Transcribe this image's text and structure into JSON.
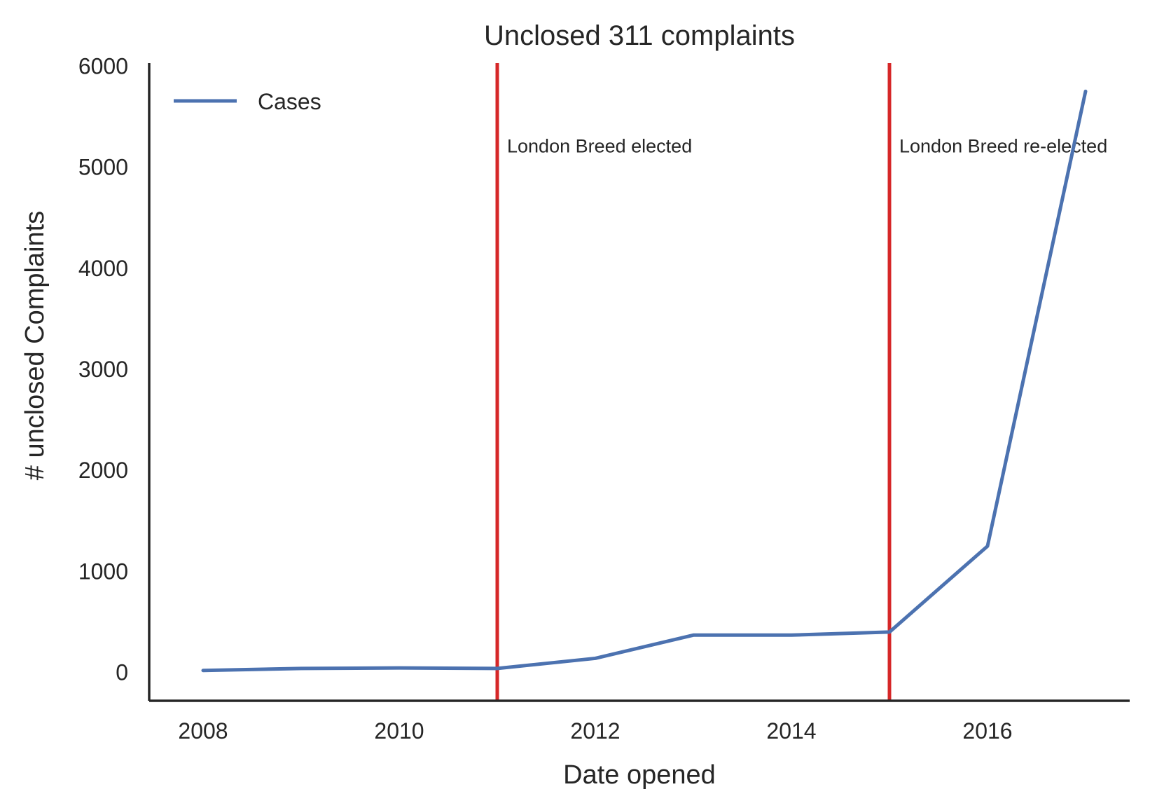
{
  "chart_data": {
    "type": "line",
    "title": "Unclosed 311 complaints",
    "xlabel": "Date opened",
    "ylabel": "# unclosed Complaints",
    "x": [
      2008,
      2009,
      2010,
      2011,
      2012,
      2013,
      2014,
      2015,
      2016,
      2017
    ],
    "series": [
      {
        "name": "Cases",
        "color": "#4c72b0",
        "values": [
          20,
          40,
          45,
          40,
          140,
          370,
          370,
          400,
          1250,
          5750
        ]
      }
    ],
    "xlim": [
      2007.45,
      2017.45
    ],
    "ylim": [
      -280,
      6030
    ],
    "xticks": [
      2008,
      2010,
      2012,
      2014,
      2016
    ],
    "xtick_labels": [
      "2008",
      "2010",
      "2012",
      "2014",
      "2016"
    ],
    "yticks": [
      0,
      1000,
      2000,
      3000,
      4000,
      5000,
      6000
    ],
    "ytick_labels": [
      "0",
      "1000",
      "2000",
      "3000",
      "4000",
      "5000",
      "6000"
    ],
    "vlines": [
      {
        "x": 2011,
        "label": "London Breed elected",
        "label_y": 5050,
        "color": "#d62728"
      },
      {
        "x": 2015,
        "label": "London Breed re-elected",
        "label_y": 5050,
        "color": "#d62728"
      }
    ],
    "legend": {
      "position": "top-left"
    },
    "grid": false,
    "axis_color": "#262626"
  }
}
